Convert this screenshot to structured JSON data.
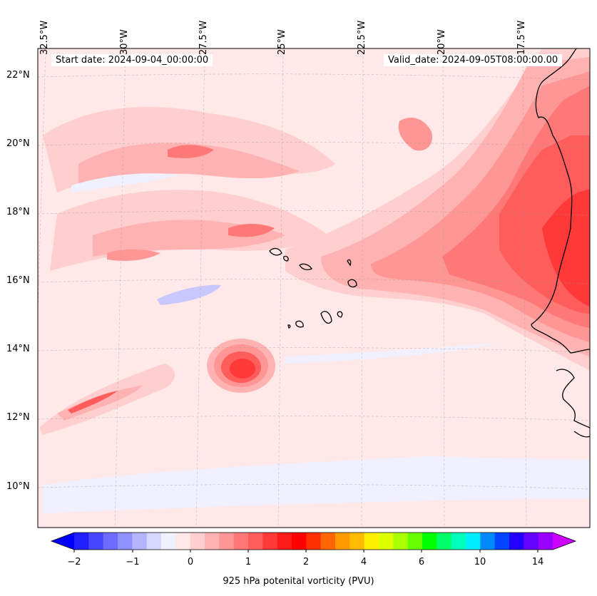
{
  "map": {
    "lon_ticks": [
      "32.5°W",
      "30°W",
      "27.5°W",
      "25°W",
      "22.5°W",
      "20°W",
      "17.5°W"
    ],
    "lat_ticks": [
      "22°N",
      "20°N",
      "18°N",
      "16°N",
      "14°N",
      "12°N",
      "10°N"
    ],
    "start_date": "Start date: 2024-09-04_00:00:00",
    "valid_date": "Valid_date: 2024-09-05T08:00:00.00",
    "colorbar": {
      "label": "925 hPa potenital vorticity (PVU)",
      "ticks": [
        "−2",
        "−1",
        "0",
        "1",
        "2",
        "4",
        "6",
        "10",
        "14"
      ],
      "colors": [
        "#0000ff",
        "#2020ff",
        "#4646ff",
        "#6c6cff",
        "#9090ff",
        "#b4b4ff",
        "#d6d6ff",
        "#f0f0ff",
        "#ffe8e8",
        "#ffcfcf",
        "#ffb2b2",
        "#ff9696",
        "#ff7878",
        "#ff5c5c",
        "#ff3838",
        "#ff1a1a",
        "#ff0000",
        "#ff3000",
        "#ff6600",
        "#ff9900",
        "#ffbb00",
        "#ffee00",
        "#ddff00",
        "#aaff00",
        "#66ff00",
        "#00ff00",
        "#00ff66",
        "#00ffbb",
        "#00eeff",
        "#0088ff",
        "#0044ff",
        "#2200ff",
        "#6600ff",
        "#9900ff",
        "#cc00ff"
      ]
    },
    "colors": {
      "background_field": "#ffe8e8",
      "light_pink": "#ffcfcf",
      "pink": "#ffb2b2",
      "salmon": "#ff9696",
      "red_light": "#ff7878",
      "red": "#ff5050",
      "blue_pale": "#ececff",
      "blue_light": "#c8c8ff",
      "coastline": "#000000"
    }
  }
}
